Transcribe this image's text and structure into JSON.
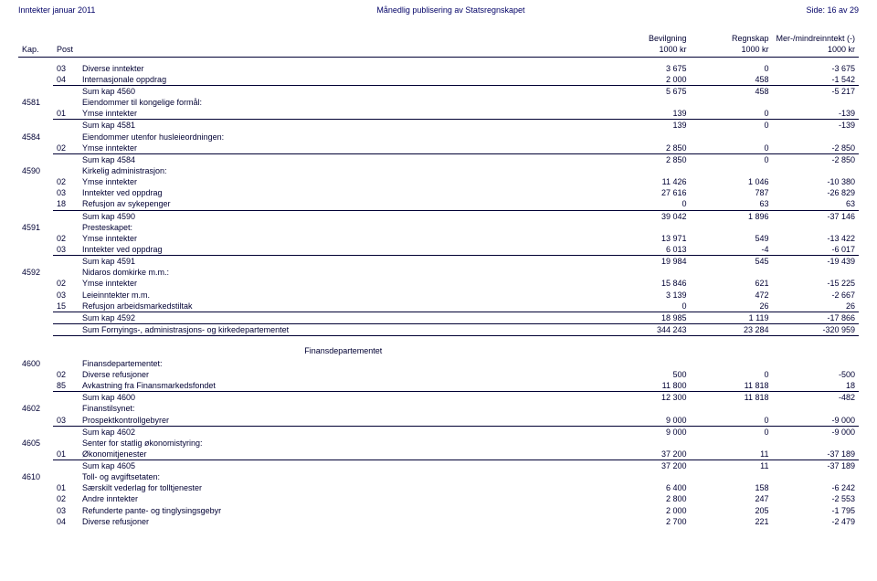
{
  "header": {
    "left": "Inntekter januar 2011",
    "center": "Månedlig publisering av Statsregnskapet",
    "right": "Side: 16 av 29"
  },
  "columns": {
    "kap": "Kap.",
    "post": "Post",
    "c1a": "Bevilgning",
    "c1b": "1000 kr",
    "c2a": "Regnskap",
    "c2b": "1000 kr",
    "c3a": "Mer-/mindreinntekt (-)",
    "c3b": "1000 kr"
  },
  "section": {
    "title": "Finansdepartementet"
  },
  "r": {
    "r0": {
      "post": "03",
      "desc": "Diverse inntekter",
      "a": "3 675",
      "b": "0",
      "c": "-3 675",
      "u": 0
    },
    "r1": {
      "post": "04",
      "desc": "Internasjonale oppdrag",
      "a": "2 000",
      "b": "458",
      "c": "-1 542",
      "u": 1
    },
    "r2": {
      "post": "",
      "desc": "Sum kap 4560",
      "a": "5 675",
      "b": "458",
      "c": "-5 217",
      "u": 0
    },
    "r3": {
      "kap": "4581",
      "desc": "Eiendommer til kongelige formål:",
      "a": "",
      "b": "",
      "c": "",
      "u": 0
    },
    "r4": {
      "post": "01",
      "desc": "Ymse inntekter",
      "a": "139",
      "b": "0",
      "c": "-139",
      "u": 1
    },
    "r5": {
      "post": "",
      "desc": "Sum kap 4581",
      "a": "139",
      "b": "0",
      "c": "-139",
      "u": 0
    },
    "r6": {
      "kap": "4584",
      "desc": "Eiendommer utenfor husleieordningen:",
      "a": "",
      "b": "",
      "c": "",
      "u": 0
    },
    "r7": {
      "post": "02",
      "desc": "Ymse inntekter",
      "a": "2 850",
      "b": "0",
      "c": "-2 850",
      "u": 1
    },
    "r8": {
      "post": "",
      "desc": "Sum kap 4584",
      "a": "2 850",
      "b": "0",
      "c": "-2 850",
      "u": 0
    },
    "r9": {
      "kap": "4590",
      "desc": "Kirkelig administrasjon:",
      "a": "",
      "b": "",
      "c": "",
      "u": 0
    },
    "r10": {
      "post": "02",
      "desc": "Ymse inntekter",
      "a": "11 426",
      "b": "1 046",
      "c": "-10 380",
      "u": 0
    },
    "r11": {
      "post": "03",
      "desc": "Inntekter ved oppdrag",
      "a": "27 616",
      "b": "787",
      "c": "-26 829",
      "u": 0
    },
    "r12": {
      "post": "18",
      "desc": "Refusjon av sykepenger",
      "a": "0",
      "b": "63",
      "c": "63",
      "u": 1
    },
    "r13": {
      "post": "",
      "desc": "Sum kap 4590",
      "a": "39 042",
      "b": "1 896",
      "c": "-37 146",
      "u": 0
    },
    "r14": {
      "kap": "4591",
      "desc": "Presteskapet:",
      "a": "",
      "b": "",
      "c": "",
      "u": 0
    },
    "r15": {
      "post": "02",
      "desc": "Ymse inntekter",
      "a": "13 971",
      "b": "549",
      "c": "-13 422",
      "u": 0
    },
    "r16": {
      "post": "03",
      "desc": "Inntekter ved oppdrag",
      "a": "6 013",
      "b": "-4",
      "c": "-6 017",
      "u": 1
    },
    "r17": {
      "post": "",
      "desc": "Sum kap 4591",
      "a": "19 984",
      "b": "545",
      "c": "-19 439",
      "u": 0
    },
    "r18": {
      "kap": "4592",
      "desc": "Nidaros domkirke m.m.:",
      "a": "",
      "b": "",
      "c": "",
      "u": 0
    },
    "r19": {
      "post": "02",
      "desc": "Ymse inntekter",
      "a": "15 846",
      "b": "621",
      "c": "-15 225",
      "u": 0
    },
    "r20": {
      "post": "03",
      "desc": "Leieinntekter m.m.",
      "a": "3 139",
      "b": "472",
      "c": "-2 667",
      "u": 0
    },
    "r21": {
      "post": "15",
      "desc": "Refusjon arbeidsmarkedstiltak",
      "a": "0",
      "b": "26",
      "c": "26",
      "u": 1
    },
    "r22": {
      "post": "",
      "desc": "Sum kap 4592",
      "a": "18 985",
      "b": "1 119",
      "c": "-17 866",
      "u": 1
    },
    "r23": {
      "post": "",
      "desc": "Sum Fornyings-, administrasjons- og kirkedepartementet",
      "a": "344 243",
      "b": "23 284",
      "c": "-320 959",
      "u": 1
    },
    "r24": {
      "kap": "4600",
      "desc": "Finansdepartementet:",
      "a": "",
      "b": "",
      "c": "",
      "u": 0
    },
    "r25": {
      "post": "02",
      "desc": "Diverse refusjoner",
      "a": "500",
      "b": "0",
      "c": "-500",
      "u": 0
    },
    "r26": {
      "post": "85",
      "desc": "Avkastning fra Finansmarkedsfondet",
      "a": "11 800",
      "b": "11 818",
      "c": "18",
      "u": 1
    },
    "r27": {
      "post": "",
      "desc": "Sum kap 4600",
      "a": "12 300",
      "b": "11 818",
      "c": "-482",
      "u": 0
    },
    "r28": {
      "kap": "4602",
      "desc": "Finanstilsynet:",
      "a": "",
      "b": "",
      "c": "",
      "u": 0
    },
    "r29": {
      "post": "03",
      "desc": "Prospektkontrollgebyrer",
      "a": "9 000",
      "b": "0",
      "c": "-9 000",
      "u": 1
    },
    "r30": {
      "post": "",
      "desc": "Sum kap 4602",
      "a": "9 000",
      "b": "0",
      "c": "-9 000",
      "u": 0
    },
    "r31": {
      "kap": "4605",
      "desc": "Senter for statlig økonomistyring:",
      "a": "",
      "b": "",
      "c": "",
      "u": 0
    },
    "r32": {
      "post": "01",
      "desc": "Økonomitjenester",
      "a": "37 200",
      "b": "11",
      "c": "-37 189",
      "u": 1
    },
    "r33": {
      "post": "",
      "desc": "Sum kap 4605",
      "a": "37 200",
      "b": "11",
      "c": "-37 189",
      "u": 0
    },
    "r34": {
      "kap": "4610",
      "desc": "Toll- og avgiftsetaten:",
      "a": "",
      "b": "",
      "c": "",
      "u": 0
    },
    "r35": {
      "post": "01",
      "desc": "Særskilt vederlag for tolltjenester",
      "a": "6 400",
      "b": "158",
      "c": "-6 242",
      "u": 0
    },
    "r36": {
      "post": "02",
      "desc": "Andre inntekter",
      "a": "2 800",
      "b": "247",
      "c": "-2 553",
      "u": 0
    },
    "r37": {
      "post": "03",
      "desc": "Refunderte pante- og tinglysingsgebyr",
      "a": "2 000",
      "b": "205",
      "c": "-1 795",
      "u": 0
    },
    "r38": {
      "post": "04",
      "desc": "Diverse refusjoner",
      "a": "2 700",
      "b": "221",
      "c": "-2 479",
      "u": 0
    }
  }
}
